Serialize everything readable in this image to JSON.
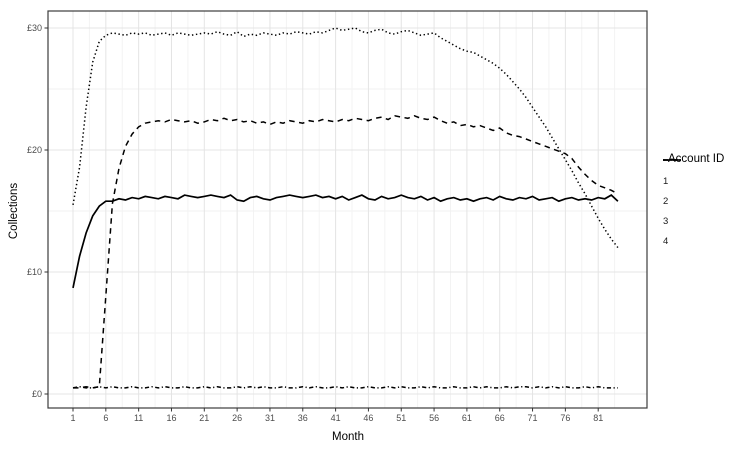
{
  "chart_data": {
    "type": "line",
    "title": "",
    "xlabel": "Month",
    "ylabel": "Collections",
    "x_ticks": [
      1,
      6,
      11,
      16,
      21,
      26,
      31,
      36,
      41,
      46,
      51,
      56,
      61,
      66,
      71,
      76,
      81
    ],
    "x_minor_ticks": [
      3.5,
      8.5,
      13.5,
      18.5,
      23.5,
      28.5,
      33.5,
      38.5,
      43.5,
      48.5,
      53.5,
      58.5,
      63.5,
      68.5,
      73.5,
      78.5,
      83.5
    ],
    "y_ticks": [
      {
        "value": 0,
        "label": "£0"
      },
      {
        "value": 10,
        "label": "£10"
      },
      {
        "value": 20,
        "label": "£20"
      },
      {
        "value": 30,
        "label": "£30"
      }
    ],
    "y_minor_ticks": [
      5,
      15,
      25
    ],
    "xlim": [
      1,
      84
    ],
    "ylim": [
      0,
      30
    ],
    "grid": true,
    "legend_position": "right",
    "x_start": 1,
    "series": [
      {
        "name": "1",
        "linetype": "solid",
        "values": [
          8.7,
          11.3,
          13.2,
          14.6,
          15.4,
          15.8,
          15.8,
          16.0,
          15.9,
          16.1,
          16.0,
          16.2,
          16.1,
          16.0,
          16.2,
          16.1,
          16.0,
          16.3,
          16.2,
          16.1,
          16.2,
          16.3,
          16.2,
          16.1,
          16.3,
          15.9,
          15.8,
          16.1,
          16.2,
          16.0,
          15.9,
          16.1,
          16.2,
          16.3,
          16.2,
          16.1,
          16.2,
          16.3,
          16.1,
          16.2,
          16.0,
          16.2,
          15.9,
          16.1,
          16.3,
          16.0,
          15.9,
          16.2,
          16.0,
          16.1,
          16.3,
          16.1,
          16.0,
          16.2,
          15.9,
          16.1,
          15.8,
          16.0,
          16.1,
          15.9,
          16.0,
          15.8,
          16.0,
          16.1,
          15.9,
          16.2,
          16.0,
          15.9,
          16.1,
          16.0,
          16.2,
          15.9,
          16.0,
          16.1,
          15.8,
          16.0,
          16.1,
          15.9,
          16.0,
          15.9,
          16.1,
          16.0,
          16.3,
          15.8
        ]
      },
      {
        "name": "2",
        "linetype": "dotted",
        "values": [
          15.5,
          18.6,
          23.5,
          27.2,
          28.9,
          29.4,
          29.6,
          29.5,
          29.4,
          29.6,
          29.5,
          29.6,
          29.4,
          29.5,
          29.6,
          29.4,
          29.6,
          29.5,
          29.4,
          29.5,
          29.6,
          29.5,
          29.7,
          29.5,
          29.4,
          29.7,
          29.3,
          29.5,
          29.4,
          29.6,
          29.5,
          29.4,
          29.6,
          29.5,
          29.7,
          29.6,
          29.5,
          29.7,
          29.6,
          29.8,
          30.0,
          29.8,
          29.9,
          30.0,
          29.7,
          29.6,
          29.8,
          29.9,
          29.6,
          29.5,
          29.7,
          29.8,
          29.6,
          29.4,
          29.5,
          29.6,
          29.2,
          28.9,
          28.6,
          28.3,
          28.1,
          28.0,
          27.7,
          27.4,
          27.1,
          26.7,
          26.2,
          25.6,
          25.0,
          24.3,
          23.5,
          22.7,
          21.9,
          21.0,
          20.1,
          19.2,
          18.3,
          17.3,
          16.4,
          15.4,
          14.4,
          13.5,
          12.7,
          12.0
        ]
      },
      {
        "name": "3",
        "linetype": "dotdash",
        "values": [
          0.5,
          0.6,
          0.5,
          0.5,
          0.6,
          0.5,
          0.6,
          0.5,
          0.5,
          0.6,
          0.5,
          0.5,
          0.6,
          0.5,
          0.6,
          0.5,
          0.5,
          0.6,
          0.5,
          0.5,
          0.6,
          0.5,
          0.6,
          0.5,
          0.5,
          0.6,
          0.5,
          0.6,
          0.5,
          0.6,
          0.5,
          0.5,
          0.6,
          0.5,
          0.5,
          0.6,
          0.5,
          0.6,
          0.5,
          0.5,
          0.6,
          0.5,
          0.6,
          0.5,
          0.5,
          0.6,
          0.5,
          0.5,
          0.6,
          0.5,
          0.6,
          0.5,
          0.5,
          0.6,
          0.5,
          0.6,
          0.5,
          0.5,
          0.6,
          0.5,
          0.5,
          0.6,
          0.5,
          0.6,
          0.5,
          0.5,
          0.6,
          0.5,
          0.6,
          0.6,
          0.5,
          0.6,
          0.5,
          0.6,
          0.5,
          0.6,
          0.5,
          0.5,
          0.6,
          0.5,
          0.6,
          0.5,
          0.5,
          0.5
        ]
      },
      {
        "name": "4",
        "linetype": "dashed",
        "values": [
          0.5,
          0.5,
          0.6,
          0.5,
          0.6,
          8.0,
          15.6,
          18.5,
          20.3,
          21.3,
          21.9,
          22.2,
          22.3,
          22.4,
          22.3,
          22.5,
          22.4,
          22.3,
          22.4,
          22.2,
          22.3,
          22.5,
          22.4,
          22.6,
          22.4,
          22.5,
          22.3,
          22.4,
          22.2,
          22.3,
          22.1,
          22.3,
          22.2,
          22.4,
          22.3,
          22.2,
          22.4,
          22.3,
          22.5,
          22.4,
          22.3,
          22.5,
          22.4,
          22.6,
          22.5,
          22.4,
          22.6,
          22.7,
          22.5,
          22.8,
          22.7,
          22.6,
          22.8,
          22.6,
          22.5,
          22.7,
          22.4,
          22.2,
          22.3,
          22.0,
          22.1,
          21.9,
          22.0,
          21.8,
          21.6,
          21.8,
          21.4,
          21.2,
          21.1,
          20.9,
          20.7,
          20.5,
          20.3,
          20.1,
          19.9,
          19.7,
          19.3,
          18.6,
          18.0,
          17.5,
          17.1,
          16.9,
          16.7,
          16.4
        ]
      }
    ]
  },
  "legend": {
    "title": "Account ID",
    "items": [
      {
        "label": "1",
        "linetype": "solid"
      },
      {
        "label": "2",
        "linetype": "dotted"
      },
      {
        "label": "3",
        "linetype": "dotdash"
      },
      {
        "label": "4",
        "linetype": "dashed"
      }
    ]
  },
  "colors": {
    "line": "#000000",
    "grid_major": "#e4e4e4",
    "grid_minor": "#f2f2f2",
    "panel_border": "#3c3c3c",
    "tick": "#333333",
    "tick_label": "#4d4d4d",
    "background": "#ffffff"
  }
}
